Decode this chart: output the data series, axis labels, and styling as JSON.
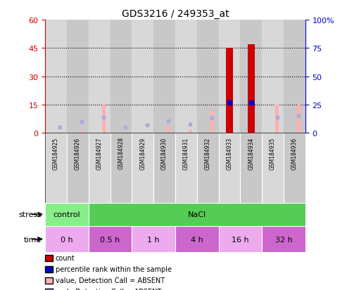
{
  "title": "GDS3216 / 249353_at",
  "samples": [
    "GSM184925",
    "GSM184926",
    "GSM184927",
    "GSM184928",
    "GSM184929",
    "GSM184930",
    "GSM184931",
    "GSM184932",
    "GSM184933",
    "GSM184934",
    "GSM184935",
    "GSM184936"
  ],
  "count_values": [
    0,
    0,
    0,
    0,
    0,
    0,
    0,
    0,
    45,
    47,
    0,
    0
  ],
  "percentile_rank": [
    0,
    0,
    0,
    0,
    0,
    0,
    0,
    0,
    27,
    27,
    0,
    0
  ],
  "value_absent": [
    0,
    1,
    15,
    0,
    0.5,
    4,
    1.5,
    12,
    0,
    0,
    15,
    15
  ],
  "rank_absent": [
    5,
    10,
    14,
    5,
    7,
    11,
    8,
    13,
    0,
    0,
    14,
    15
  ],
  "ylim_left": [
    0,
    60
  ],
  "ylim_right": [
    0,
    100
  ],
  "yticks_left": [
    0,
    15,
    30,
    45,
    60
  ],
  "yticks_right": [
    0,
    25,
    50,
    75,
    100
  ],
  "color_count": "#cc0000",
  "color_rank": "#0000cc",
  "color_value_absent": "#ffb0b0",
  "color_rank_absent": "#aaaadd",
  "color_axis_left": "#cc0000",
  "color_axis_right": "#0000cc",
  "stress_configs": [
    {
      "label": "control",
      "start": 0,
      "end": 2,
      "color": "#88ee88"
    },
    {
      "label": "NaCl",
      "start": 2,
      "end": 12,
      "color": "#55cc55"
    }
  ],
  "time_configs": [
    {
      "label": "0 h",
      "start": 0,
      "end": 2,
      "color": "#eeaaee"
    },
    {
      "label": "0.5 h",
      "start": 2,
      "end": 4,
      "color": "#cc66cc"
    },
    {
      "label": "1 h",
      "start": 4,
      "end": 6,
      "color": "#eeaaee"
    },
    {
      "label": "4 h",
      "start": 6,
      "end": 8,
      "color": "#cc66cc"
    },
    {
      "label": "16 h",
      "start": 8,
      "end": 10,
      "color": "#eeaaee"
    },
    {
      "label": "32 h",
      "start": 10,
      "end": 12,
      "color": "#cc66cc"
    }
  ],
  "legend_items": [
    {
      "label": "count",
      "color": "#cc0000"
    },
    {
      "label": "percentile rank within the sample",
      "color": "#0000cc"
    },
    {
      "label": "value, Detection Call = ABSENT",
      "color": "#ffb0b0"
    },
    {
      "label": "rank, Detection Call = ABSENT",
      "color": "#aaaadd"
    }
  ],
  "bar_width": 0.32,
  "col_colors": [
    "#d8d8d8",
    "#c8c8c8"
  ]
}
